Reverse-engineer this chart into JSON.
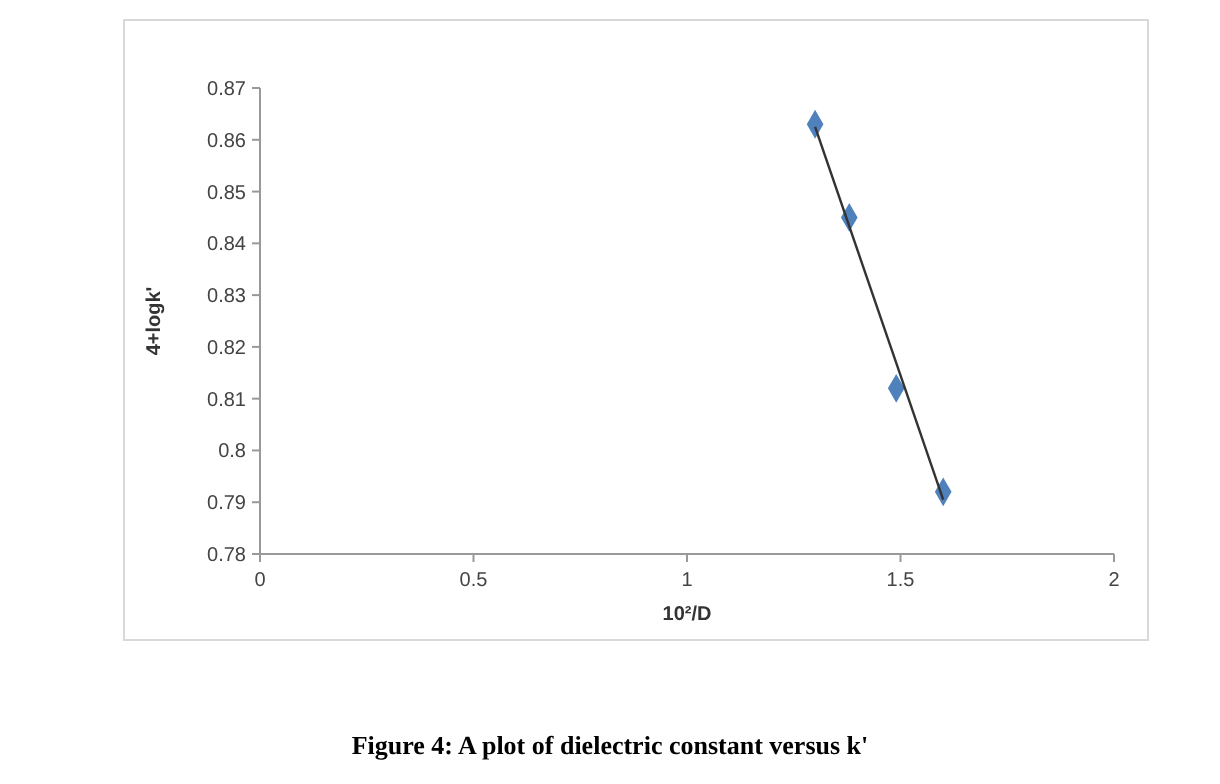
{
  "chart_data": {
    "type": "scatter",
    "xlabel": "10²/D",
    "ylabel": "4+logk'",
    "annotations": [
      "Figure 4: A plot of dielectric constant versus k'"
    ],
    "series": [
      {
        "color": "#4f81bd",
        "marker": "diamond",
        "x": [
          1.3,
          1.38,
          1.49,
          1.6
        ],
        "values": [
          0.863,
          0.845,
          0.812,
          0.792
        ]
      },
      {
        "type": "line",
        "color": "#333333",
        "marker": "none",
        "x": [
          1.3,
          1.6
        ],
        "values": [
          0.8625,
          0.7905
        ]
      }
    ],
    "xlim": [
      0,
      2
    ],
    "xticks": [
      0,
      0.5,
      1,
      1.5,
      2
    ],
    "ylim": [
      0.78,
      0.87
    ],
    "yticks": [
      0.78,
      0.79,
      0.8,
      0.81,
      0.82,
      0.83,
      0.84,
      0.85,
      0.86,
      0.87
    ],
    "grid": false
  }
}
